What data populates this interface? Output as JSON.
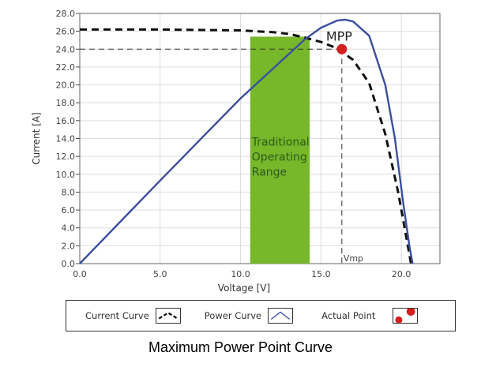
{
  "chart_data": {
    "type": "line",
    "title": "Maximum Power Point Curve",
    "xlabel": "Voltage [V]",
    "ylabel": "Current [A]",
    "xlim": [
      0,
      22.4
    ],
    "ylim": [
      0,
      28
    ],
    "xticks": [
      "0.0",
      "5.0",
      "10.0",
      "15.0",
      "20.0"
    ],
    "yticks": [
      "0.0",
      "2.0",
      "4.0",
      "6.0",
      "8.0",
      "10.0",
      "12.0",
      "14.0",
      "16.0",
      "18.0",
      "20.0",
      "22.0",
      "24.0",
      "26.0",
      "28.0"
    ],
    "grid": true,
    "series": [
      {
        "name": "Current Curve",
        "style": "dashed",
        "color": "#111111",
        "points": [
          [
            0,
            26.2
          ],
          [
            5,
            26.2
          ],
          [
            10,
            26.1
          ],
          [
            12,
            25.9
          ],
          [
            13,
            25.7
          ],
          [
            14,
            25.3
          ],
          [
            15,
            24.8
          ],
          [
            16,
            24.1
          ],
          [
            17,
            22.8
          ],
          [
            18,
            20.2
          ],
          [
            19,
            14.5
          ],
          [
            19.8,
            8
          ],
          [
            20.3,
            3
          ],
          [
            20.6,
            0
          ]
        ]
      },
      {
        "name": "Power Curve",
        "style": "solid",
        "color": "#3a4fa0",
        "points": [
          [
            0,
            0
          ],
          [
            5,
            9.3
          ],
          [
            10,
            18.5
          ],
          [
            12,
            21.8
          ],
          [
            14,
            25.1
          ],
          [
            15,
            26.4
          ],
          [
            16,
            27.2
          ],
          [
            16.5,
            27.3
          ],
          [
            17,
            27.1
          ],
          [
            18,
            25.5
          ],
          [
            19,
            20
          ],
          [
            19.6,
            14
          ],
          [
            20.1,
            7
          ],
          [
            20.5,
            2
          ],
          [
            20.7,
            0
          ]
        ]
      }
    ],
    "actual_point": {
      "name": "Actual Point",
      "x": 16.3,
      "y": 24,
      "color": "#d42020"
    },
    "mpp_label": "MPP",
    "vmp_label": "Vmp",
    "range": {
      "label": "Traditional Operating Range",
      "label_lines": [
        "Traditional",
        "Operating",
        "Range"
      ],
      "x0": 10.6,
      "x1": 14.3,
      "color": "#76b82a"
    },
    "legend": {
      "placement": "bottom",
      "items": [
        "Current Curve",
        "Power Curve",
        "Actual Point"
      ]
    }
  }
}
